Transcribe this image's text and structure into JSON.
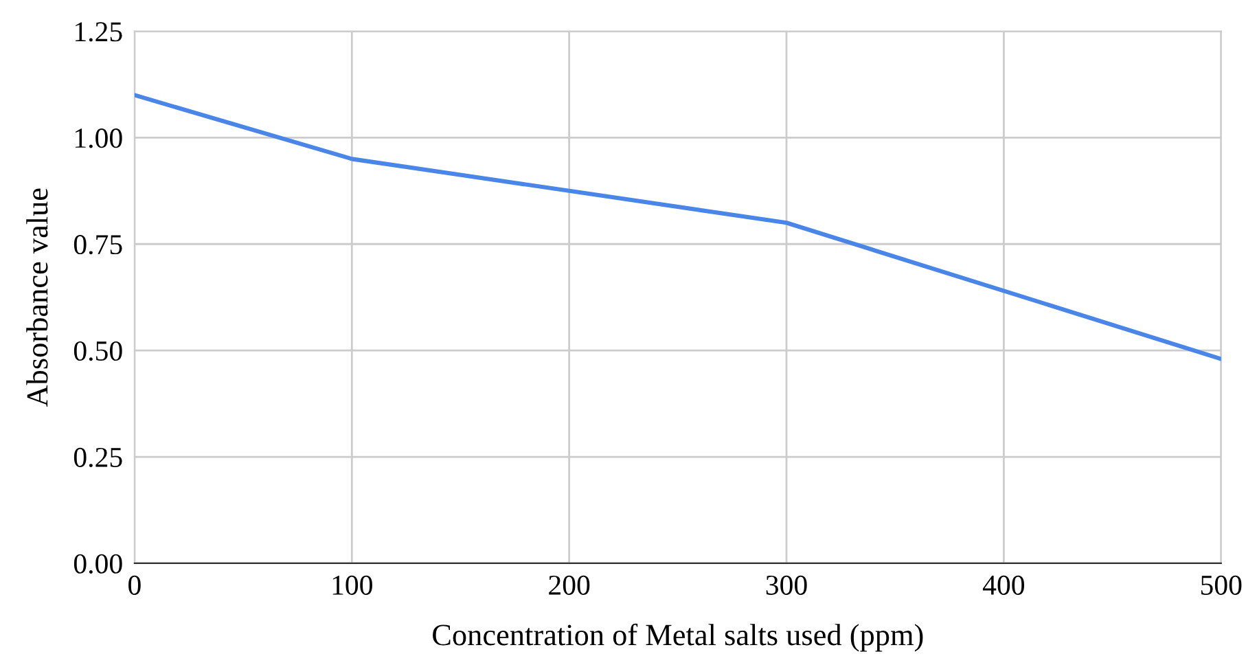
{
  "chart_data": {
    "type": "line",
    "xlabel": "Concentration of Metal salts used (ppm)",
    "ylabel": "Absorbance value",
    "x": [
      0,
      100,
      200,
      300,
      400,
      500
    ],
    "series": [
      {
        "color": "#4a86e8",
        "values": [
          1.1,
          0.95,
          0.875,
          0.8,
          0.64,
          0.48
        ]
      }
    ],
    "xlim": [
      0,
      500
    ],
    "xticks": [
      0,
      100,
      200,
      300,
      400,
      500
    ],
    "ylim": [
      0,
      1.25
    ],
    "yticks": [
      {
        "value": 0,
        "label": "0.00"
      },
      {
        "value": 0.25,
        "label": "0.25"
      },
      {
        "value": 0.5,
        "label": "0.50"
      },
      {
        "value": 0.75,
        "label": "0.75"
      },
      {
        "value": 1.0,
        "label": "1.00"
      },
      {
        "value": 1.25,
        "label": "1.25"
      }
    ],
    "grid": true,
    "marker": "none",
    "line_style": "solid"
  }
}
